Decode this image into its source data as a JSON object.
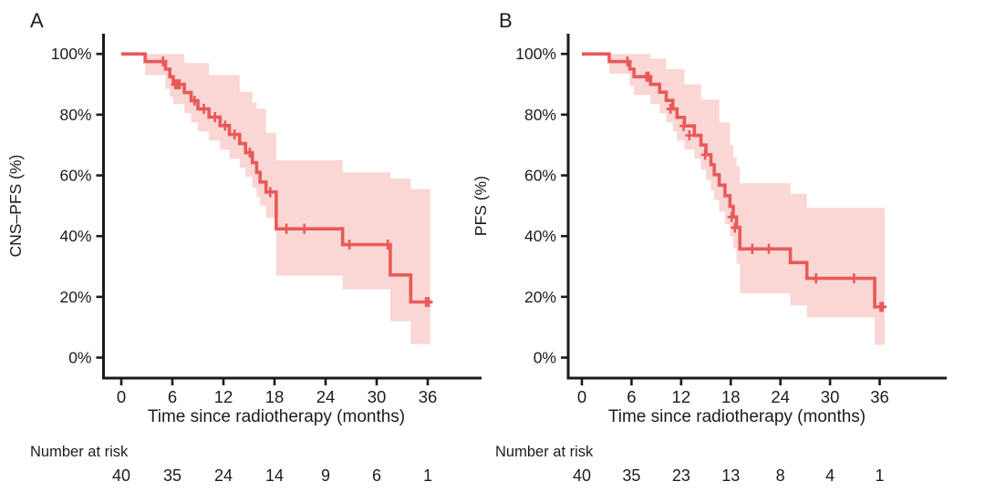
{
  "figure": {
    "background": "#ffffff",
    "text_color": "#1c1c1c",
    "axis_color": "#1a1a1a",
    "line_color": "#E85A58",
    "band_color": "#FAD6D4",
    "panelA": {
      "letter": "A",
      "y_axis_title": "CNS–PFS (%)",
      "x_axis_title": "Time since radiotherapy (months)",
      "number_at_risk_label": "Number at risk"
    },
    "panelB": {
      "letter": "B",
      "y_axis_title": "PFS (%)",
      "x_axis_title": "Time since radiotherapy (months)",
      "number_at_risk_label": "Number at risk"
    }
  },
  "chart_data": [
    {
      "type": "line",
      "subtype": "kaplan-meier-step-with-ci",
      "panel": "A",
      "title": "",
      "xlabel": "Time since radiotherapy (months)",
      "ylabel": "CNS–PFS (%)",
      "xlim": [
        0,
        39
      ],
      "ylim": [
        0,
        100
      ],
      "x_ticks": [
        0,
        6,
        12,
        18,
        24,
        30,
        36
      ],
      "y_ticks": [
        0,
        20,
        40,
        60,
        80,
        100
      ],
      "y_tick_labels": [
        "0%",
        "20%",
        "40%",
        "60%",
        "80%",
        "100%"
      ],
      "grid": false,
      "legend": "none",
      "curve_end_t": 36.5,
      "steps": [
        {
          "t": 0,
          "pct": 100
        },
        {
          "t": 2.8,
          "pct": 97.5
        },
        {
          "t": 5.2,
          "pct": 95
        },
        {
          "t": 5.7,
          "pct": 92.5
        },
        {
          "t": 6.1,
          "pct": 90
        },
        {
          "t": 7.4,
          "pct": 87.3
        },
        {
          "t": 8.2,
          "pct": 84.6
        },
        {
          "t": 9.0,
          "pct": 81.9
        },
        {
          "t": 10.3,
          "pct": 79.2
        },
        {
          "t": 11.6,
          "pct": 76.4
        },
        {
          "t": 12.7,
          "pct": 73.5
        },
        {
          "t": 13.9,
          "pct": 70.5
        },
        {
          "t": 14.6,
          "pct": 67.5
        },
        {
          "t": 15.4,
          "pct": 64.2
        },
        {
          "t": 15.9,
          "pct": 61.0
        },
        {
          "t": 16.3,
          "pct": 57.8
        },
        {
          "t": 17.0,
          "pct": 54.5
        },
        {
          "t": 18.2,
          "pct": 42.4
        },
        {
          "t": 26.0,
          "pct": 37.2
        },
        {
          "t": 31.6,
          "pct": 27.2
        },
        {
          "t": 34.0,
          "pct": 18.3
        }
      ],
      "censors": [
        {
          "t": 4.9,
          "pct": 97.5
        },
        {
          "t": 6.35,
          "pct": 90
        },
        {
          "t": 6.6,
          "pct": 90
        },
        {
          "t": 6.85,
          "pct": 90
        },
        {
          "t": 8.6,
          "pct": 84.6
        },
        {
          "t": 9.7,
          "pct": 81.9
        },
        {
          "t": 11.0,
          "pct": 79.2
        },
        {
          "t": 12.2,
          "pct": 76.4
        },
        {
          "t": 13.3,
          "pct": 73.5
        },
        {
          "t": 15.1,
          "pct": 67.5
        },
        {
          "t": 17.5,
          "pct": 54.5
        },
        {
          "t": 19.4,
          "pct": 42.4
        },
        {
          "t": 21.5,
          "pct": 42.4
        },
        {
          "t": 26.8,
          "pct": 37.2
        },
        {
          "t": 31.3,
          "pct": 37.2
        },
        {
          "t": 35.8,
          "pct": 18.3
        },
        {
          "t": 36.1,
          "pct": 18.3
        }
      ],
      "ci_band": [
        {
          "t": 2.8,
          "lo": 93,
          "hi": 100
        },
        {
          "t": 5.2,
          "lo": 88.5,
          "hi": 100
        },
        {
          "t": 5.7,
          "lo": 86,
          "hi": 100
        },
        {
          "t": 6.1,
          "lo": 83.5,
          "hi": 100
        },
        {
          "t": 7.4,
          "lo": 80.5,
          "hi": 97
        },
        {
          "t": 8.2,
          "lo": 77.5,
          "hi": 97
        },
        {
          "t": 9.0,
          "lo": 74.5,
          "hi": 97
        },
        {
          "t": 10.3,
          "lo": 71.5,
          "hi": 93
        },
        {
          "t": 11.6,
          "lo": 68.5,
          "hi": 93
        },
        {
          "t": 12.7,
          "lo": 65.5,
          "hi": 93
        },
        {
          "t": 13.9,
          "lo": 62.5,
          "hi": 87.5
        },
        {
          "t": 14.6,
          "lo": 59.5,
          "hi": 87.5
        },
        {
          "t": 15.4,
          "lo": 56,
          "hi": 84
        },
        {
          "t": 15.9,
          "lo": 53,
          "hi": 82
        },
        {
          "t": 16.3,
          "lo": 50,
          "hi": 82
        },
        {
          "t": 17.0,
          "lo": 46,
          "hi": 74
        },
        {
          "t": 18.2,
          "lo": 27,
          "hi": 65
        },
        {
          "t": 26.0,
          "lo": 22.5,
          "hi": 61
        },
        {
          "t": 31.6,
          "lo": 12,
          "hi": 59
        },
        {
          "t": 34.0,
          "lo": 4.5,
          "hi": 55.5
        }
      ],
      "band_end_t": 36.3,
      "number_at_risk": {
        "label": "Number at risk",
        "times": [
          0,
          6,
          12,
          18,
          24,
          30,
          36
        ],
        "counts": [
          40,
          35,
          24,
          14,
          9,
          6,
          1
        ]
      }
    },
    {
      "type": "line",
      "subtype": "kaplan-meier-step-with-ci",
      "panel": "B",
      "title": "",
      "xlabel": "Time since radiotherapy (months)",
      "ylabel": "PFS (%)",
      "xlim": [
        0,
        39
      ],
      "ylim": [
        0,
        100
      ],
      "x_ticks": [
        0,
        6,
        12,
        18,
        24,
        30,
        36
      ],
      "y_ticks": [
        0,
        20,
        40,
        60,
        80,
        100
      ],
      "y_tick_labels": [
        "0%",
        "20%",
        "40%",
        "60%",
        "80%",
        "100%"
      ],
      "grid": false,
      "legend": "none",
      "curve_end_t": 36.6,
      "steps": [
        {
          "t": 0,
          "pct": 100
        },
        {
          "t": 3.3,
          "pct": 97.5
        },
        {
          "t": 5.8,
          "pct": 95
        },
        {
          "t": 6.3,
          "pct": 92.5
        },
        {
          "t": 8.3,
          "pct": 90
        },
        {
          "t": 9.4,
          "pct": 87.4
        },
        {
          "t": 10.2,
          "pct": 84.7
        },
        {
          "t": 11.0,
          "pct": 81.9
        },
        {
          "t": 11.5,
          "pct": 79.1
        },
        {
          "t": 12.4,
          "pct": 76.3
        },
        {
          "t": 13.6,
          "pct": 73.2
        },
        {
          "t": 14.4,
          "pct": 70.0
        },
        {
          "t": 15.0,
          "pct": 66.8
        },
        {
          "t": 15.6,
          "pct": 63.5
        },
        {
          "t": 16.0,
          "pct": 60.2
        },
        {
          "t": 16.6,
          "pct": 56.8
        },
        {
          "t": 17.3,
          "pct": 53.3
        },
        {
          "t": 17.9,
          "pct": 49.8
        },
        {
          "t": 18.3,
          "pct": 46.3
        },
        {
          "t": 18.7,
          "pct": 42.8
        },
        {
          "t": 19.1,
          "pct": 35.8
        },
        {
          "t": 25.2,
          "pct": 31.3
        },
        {
          "t": 27.2,
          "pct": 26.1
        },
        {
          "t": 35.4,
          "pct": 16.7
        }
      ],
      "censors": [
        {
          "t": 5.5,
          "pct": 97.5
        },
        {
          "t": 7.8,
          "pct": 92.5
        },
        {
          "t": 8.05,
          "pct": 92.5
        },
        {
          "t": 10.7,
          "pct": 81.9
        },
        {
          "t": 12.3,
          "pct": 76.3
        },
        {
          "t": 13.0,
          "pct": 73.2
        },
        {
          "t": 14.9,
          "pct": 66.8
        },
        {
          "t": 18.1,
          "pct": 46.3
        },
        {
          "t": 18.5,
          "pct": 42.8
        },
        {
          "t": 20.6,
          "pct": 35.8
        },
        {
          "t": 22.6,
          "pct": 35.8
        },
        {
          "t": 28.3,
          "pct": 26.1
        },
        {
          "t": 32.9,
          "pct": 26.1
        },
        {
          "t": 36.1,
          "pct": 16.7
        },
        {
          "t": 36.35,
          "pct": 16.7
        }
      ],
      "ci_band": [
        {
          "t": 3.3,
          "lo": 93.5,
          "hi": 100
        },
        {
          "t": 5.8,
          "lo": 89.5,
          "hi": 100
        },
        {
          "t": 6.3,
          "lo": 86.5,
          "hi": 100
        },
        {
          "t": 8.3,
          "lo": 83.5,
          "hi": 98.5
        },
        {
          "t": 9.4,
          "lo": 80.5,
          "hi": 98.5
        },
        {
          "t": 10.2,
          "lo": 77.5,
          "hi": 95
        },
        {
          "t": 11.0,
          "lo": 74.5,
          "hi": 95
        },
        {
          "t": 11.5,
          "lo": 71.5,
          "hi": 95
        },
        {
          "t": 12.4,
          "lo": 68.5,
          "hi": 90
        },
        {
          "t": 13.6,
          "lo": 65.5,
          "hi": 90
        },
        {
          "t": 14.4,
          "lo": 62,
          "hi": 85
        },
        {
          "t": 15.0,
          "lo": 58.5,
          "hi": 85
        },
        {
          "t": 15.6,
          "lo": 55,
          "hi": 85
        },
        {
          "t": 16.0,
          "lo": 52,
          "hi": 85
        },
        {
          "t": 16.6,
          "lo": 48,
          "hi": 77.5
        },
        {
          "t": 17.3,
          "lo": 44,
          "hi": 77.5
        },
        {
          "t": 17.9,
          "lo": 40,
          "hi": 70
        },
        {
          "t": 18.3,
          "lo": 36,
          "hi": 66
        },
        {
          "t": 18.7,
          "lo": 31,
          "hi": 63
        },
        {
          "t": 19.1,
          "lo": 21.2,
          "hi": 57.4
        },
        {
          "t": 25.2,
          "lo": 17.2,
          "hi": 53.9
        },
        {
          "t": 27.2,
          "lo": 13.2,
          "hi": 49.3
        },
        {
          "t": 35.4,
          "lo": 4.2,
          "hi": 49.3
        }
      ],
      "band_end_t": 36.6,
      "number_at_risk": {
        "label": "Number at risk",
        "times": [
          0,
          6,
          12,
          18,
          24,
          30,
          36
        ],
        "counts": [
          40,
          35,
          23,
          13,
          8,
          4,
          1
        ]
      }
    }
  ]
}
